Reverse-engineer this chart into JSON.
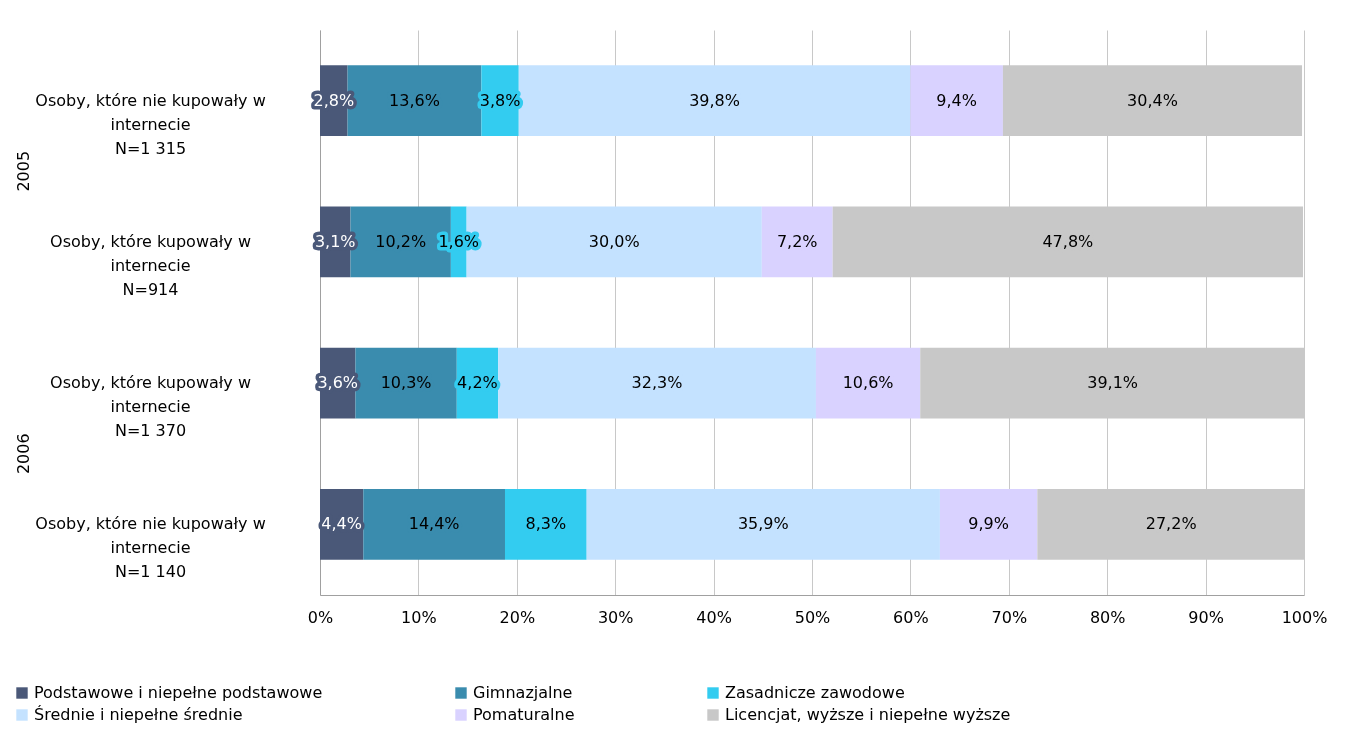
{
  "chart_data": {
    "type": "bar",
    "orientation": "horizontal",
    "stacked": true,
    "categories": [
      "Osoby, które nie kupowały w\ninternecie\nN=1 315",
      "Osoby, które kupowały w\ninternecie\nN=914",
      "Osoby, które kupowały w\ninternecie\nN=1 370",
      "Osoby, które nie kupowały w\ninternecie\nN=1 140"
    ],
    "series": [
      {
        "name": "Podstawowe i niepełne podstawowe",
        "color": "#4a5878",
        "values": [
          2.8,
          3.1,
          3.6,
          4.4
        ],
        "value_labels": [
          "2,8%",
          "3,1%",
          "3,6%",
          "4,4%"
        ]
      },
      {
        "name": "Gimnazjalne",
        "color": "#3a8cae",
        "values": [
          13.6,
          10.2,
          10.3,
          14.4
        ],
        "value_labels": [
          "13,6%",
          "10,2%",
          "10,3%",
          "14,4%"
        ]
      },
      {
        "name": "Zasadnicze zawodowe",
        "color": "#33ccf0",
        "values": [
          3.8,
          1.6,
          4.2,
          8.3
        ],
        "value_labels": [
          "3,8%",
          "1,6%",
          "4,2%",
          "8,3%"
        ]
      },
      {
        "name": "Średnie i niepełne średnie",
        "color": "#c4e2ff",
        "values": [
          39.8,
          30.0,
          32.3,
          35.9
        ],
        "value_labels": [
          "39,8%",
          "30,0%",
          "32,3%",
          "35,9%"
        ]
      },
      {
        "name": "Pomaturalne",
        "color": "#d9d2ff",
        "values": [
          9.4,
          7.2,
          10.6,
          9.9
        ],
        "value_labels": [
          "9,4%",
          "7,2%",
          "10,6%",
          "9,9%"
        ]
      },
      {
        "name": "Licencjat, wyższe i niepełne wyższe",
        "color": "#c8c8c8",
        "values": [
          30.4,
          47.8,
          39.1,
          27.2
        ],
        "value_labels": [
          "30,4%",
          "47,8%",
          "39,1%",
          "27,2%"
        ]
      }
    ],
    "xlim": [
      0,
      100
    ],
    "xticks": [
      {
        "value": 0,
        "label": "0%"
      },
      {
        "value": 10,
        "label": "10%"
      },
      {
        "value": 20,
        "label": "20%"
      },
      {
        "value": 30,
        "label": "30%"
      },
      {
        "value": 40,
        "label": "40%"
      },
      {
        "value": 50,
        "label": "50%"
      },
      {
        "value": 60,
        "label": "60%"
      },
      {
        "value": 70,
        "label": "70%"
      },
      {
        "value": 80,
        "label": "80%"
      },
      {
        "value": 90,
        "label": "90%"
      },
      {
        "value": 100,
        "label": "100%"
      }
    ],
    "grid": "x",
    "legend": "bottom",
    "annotations": [
      "2005",
      "2006"
    ]
  }
}
